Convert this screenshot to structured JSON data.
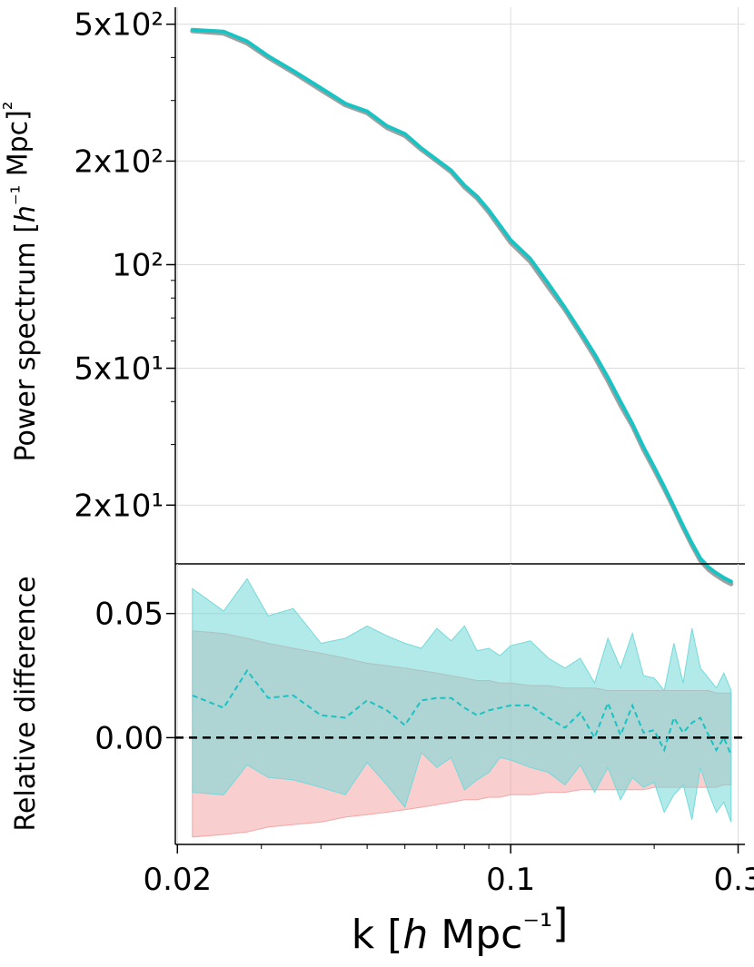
{
  "chart_data": [
    {
      "type": "line",
      "panel": "top",
      "ylabel": "Power spectrum [h⁻¹ Mpc]²",
      "yscale": "log",
      "xscale": "log",
      "xlim": [
        0.0198,
        0.31
      ],
      "ylim": [
        13.5,
        560
      ],
      "grid": true,
      "yticks": [
        {
          "value": 500,
          "label": "5x10²"
        },
        {
          "value": 200,
          "label": "2x10²"
        },
        {
          "value": 100,
          "label": "10²"
        },
        {
          "value": 50,
          "label": "5x10¹"
        },
        {
          "value": 20,
          "label": "2x10¹"
        }
      ],
      "x": [
        0.0215,
        0.025,
        0.028,
        0.031,
        0.035,
        0.04,
        0.045,
        0.05,
        0.055,
        0.06,
        0.065,
        0.07,
        0.075,
        0.08,
        0.085,
        0.09,
        0.095,
        0.1,
        0.11,
        0.12,
        0.13,
        0.14,
        0.15,
        0.16,
        0.17,
        0.18,
        0.19,
        0.2,
        0.21,
        0.22,
        0.23,
        0.24,
        0.25,
        0.26,
        0.27,
        0.28,
        0.29
      ],
      "series": [
        {
          "color": "#808080",
          "values": [
            478,
            470,
            440,
            400,
            362,
            322,
            291,
            276,
            250,
            237,
            216,
            200,
            186,
            168,
            156,
            142,
            128,
            116,
            102,
            86,
            74,
            63,
            54,
            46,
            39,
            34,
            29,
            25.4,
            22.3,
            19.6,
            17.2,
            15.3,
            13.8,
            13.0,
            12.5,
            12.1,
            11.8
          ]
        },
        {
          "color": "#17c3c3",
          "values": [
            482,
            476,
            446,
            404,
            366,
            326,
            294,
            279,
            253,
            240,
            218,
            202,
            188,
            170,
            158,
            144,
            130,
            118,
            104,
            88,
            75,
            64,
            55,
            47,
            40,
            34.5,
            29.5,
            25.8,
            22.6,
            19.8,
            17.4,
            15.5,
            14.0,
            13.2,
            12.7,
            12.3,
            12.0
          ]
        }
      ]
    },
    {
      "type": "area",
      "panel": "bottom",
      "ylabel": "Relative difference",
      "xlabel": "k [h Mpc⁻¹]",
      "xscale": "log",
      "xlim": [
        0.0198,
        0.31
      ],
      "ylim": [
        -0.043,
        0.07
      ],
      "grid": true,
      "yticks": [
        {
          "value": 0.05,
          "label": "0.05"
        },
        {
          "value": 0.0,
          "label": "0.00"
        }
      ],
      "xticks": [
        {
          "value": 0.02,
          "label": "0.02"
        },
        {
          "value": 0.1,
          "label": "0.1"
        },
        {
          "value": 0.3,
          "label": "0.3"
        }
      ],
      "reference_line": 0.0,
      "x": [
        0.0215,
        0.025,
        0.028,
        0.031,
        0.035,
        0.04,
        0.045,
        0.05,
        0.055,
        0.06,
        0.065,
        0.07,
        0.075,
        0.08,
        0.085,
        0.09,
        0.095,
        0.1,
        0.11,
        0.12,
        0.13,
        0.14,
        0.15,
        0.16,
        0.17,
        0.18,
        0.19,
        0.2,
        0.21,
        0.22,
        0.23,
        0.24,
        0.25,
        0.26,
        0.27,
        0.28,
        0.29
      ],
      "series": [
        {
          "color": "#f4a6a6",
          "kind": "band",
          "upper": [
            0.043,
            0.042,
            0.04,
            0.038,
            0.036,
            0.034,
            0.032,
            0.03,
            0.029,
            0.028,
            0.027,
            0.026,
            0.025,
            0.024,
            0.023,
            0.023,
            0.022,
            0.022,
            0.021,
            0.021,
            0.02,
            0.02,
            0.02,
            0.019,
            0.019,
            0.019,
            0.019,
            0.019,
            0.019,
            0.019,
            0.019,
            0.019,
            0.019,
            0.019,
            0.018,
            0.018,
            0.018
          ],
          "lower": [
            -0.04,
            -0.039,
            -0.038,
            -0.036,
            -0.035,
            -0.034,
            -0.032,
            -0.031,
            -0.03,
            -0.029,
            -0.028,
            -0.027,
            -0.026,
            -0.025,
            -0.025,
            -0.024,
            -0.024,
            -0.023,
            -0.023,
            -0.022,
            -0.022,
            -0.021,
            -0.021,
            -0.021,
            -0.021,
            -0.021,
            -0.021,
            -0.02,
            -0.02,
            -0.02,
            -0.02,
            -0.02,
            -0.02,
            -0.02,
            -0.02,
            -0.019,
            -0.019
          ]
        },
        {
          "color": "#73d9d9",
          "kind": "band",
          "upper": [
            0.06,
            0.051,
            0.064,
            0.049,
            0.052,
            0.038,
            0.04,
            0.045,
            0.041,
            0.038,
            0.036,
            0.044,
            0.039,
            0.045,
            0.035,
            0.036,
            0.033,
            0.037,
            0.039,
            0.032,
            0.028,
            0.032,
            0.022,
            0.04,
            0.028,
            0.042,
            0.025,
            0.024,
            0.019,
            0.038,
            0.022,
            0.044,
            0.028,
            0.024,
            0.02,
            0.026,
            0.019
          ],
          "lower": [
            -0.022,
            -0.023,
            -0.011,
            -0.016,
            -0.017,
            -0.02,
            -0.023,
            -0.01,
            -0.019,
            -0.028,
            -0.006,
            -0.012,
            -0.008,
            -0.021,
            -0.017,
            -0.014,
            -0.008,
            -0.009,
            -0.012,
            -0.014,
            -0.019,
            -0.011,
            -0.022,
            -0.012,
            -0.025,
            -0.016,
            -0.02,
            -0.018,
            -0.03,
            -0.023,
            -0.019,
            -0.033,
            -0.012,
            -0.022,
            -0.03,
            -0.026,
            -0.034
          ]
        },
        {
          "color": "#17c3c3",
          "kind": "dashed",
          "values": [
            0.017,
            0.012,
            0.027,
            0.016,
            0.017,
            0.009,
            0.008,
            0.015,
            0.011,
            0.005,
            0.015,
            0.016,
            0.016,
            0.012,
            0.009,
            0.011,
            0.012,
            0.013,
            0.013,
            0.008,
            0.004,
            0.01,
            0.0,
            0.014,
            0.001,
            0.013,
            0.002,
            0.003,
            -0.005,
            0.008,
            0.002,
            0.006,
            0.008,
            0.001,
            -0.005,
            0.0,
            -0.007
          ]
        }
      ]
    }
  ]
}
